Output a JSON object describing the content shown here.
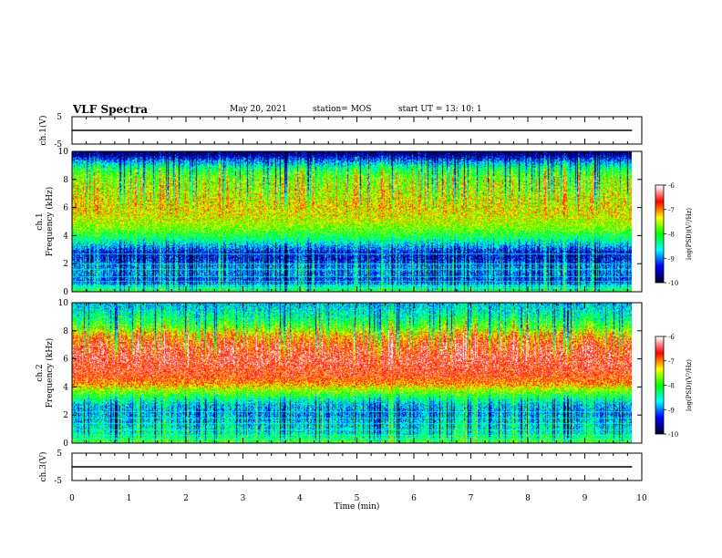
{
  "header": {
    "title": "VLF Spectra",
    "date": "May 20, 2021",
    "station": "station= MOS",
    "start": "start  UT  =    13: 10: 1"
  },
  "chart_data": [
    {
      "type": "line",
      "panel": "ch1-waveform",
      "ylabel": "ch.1(V)",
      "ylim": [
        -5,
        5
      ],
      "yticks": [
        "5",
        "-5"
      ],
      "series": [
        {
          "x": [
            0,
            9.83
          ],
          "y": [
            0,
            0
          ]
        }
      ]
    },
    {
      "type": "heatmap",
      "panel": "ch1-spectrogram",
      "ylabel": "ch.1\nFrequency (kHz)",
      "xlim": [
        0,
        10
      ],
      "ylim": [
        0,
        10
      ],
      "yticks": [
        "0",
        "2",
        "4",
        "6",
        "8",
        "10"
      ],
      "data_end_min": 9.83,
      "colorbar": {
        "label": "log(PSD)(V²/Hz)",
        "range": [
          -10,
          -6
        ],
        "ticks": [
          "-6",
          "-7",
          "-8",
          "-9",
          "-10"
        ]
      },
      "profile_khz": [
        0.25,
        0.75,
        1.25,
        1.75,
        2.25,
        2.75,
        3.25,
        3.75,
        4.25,
        4.75,
        5.25,
        5.75,
        6.25,
        6.75,
        7.25,
        7.75,
        8.25,
        8.75,
        9.25,
        9.75
      ],
      "profile_log_psd": [
        -8.2,
        -9.2,
        -9.0,
        -8.9,
        -9.3,
        -9.4,
        -8.8,
        -8.3,
        -7.9,
        -7.6,
        -7.4,
        -7.3,
        -7.3,
        -7.4,
        -7.5,
        -7.6,
        -7.8,
        -8.2,
        -8.9,
        -9.7
      ],
      "lines_khz": [
        0.3,
        0.45,
        0.75,
        1.1,
        1.6,
        2.0,
        2.7
      ]
    },
    {
      "type": "heatmap",
      "panel": "ch2-spectrogram",
      "ylabel": "ch.2\nFrequency (kHz)",
      "xlim": [
        0,
        10
      ],
      "ylim": [
        0,
        10
      ],
      "yticks": [
        "0",
        "2",
        "4",
        "6",
        "8",
        "10"
      ],
      "data_end_min": 9.83,
      "colorbar": {
        "label": "log(PSD)(V²/Hz)",
        "range": [
          -10,
          -6
        ],
        "ticks": [
          "-6",
          "-7",
          "-8",
          "-9",
          "-10"
        ]
      },
      "profile_khz": [
        0.25,
        0.75,
        1.25,
        1.75,
        2.25,
        2.75,
        3.25,
        3.75,
        4.25,
        4.75,
        5.25,
        5.75,
        6.25,
        6.75,
        7.25,
        7.75,
        8.25,
        8.75,
        9.25,
        9.75
      ],
      "profile_log_psd": [
        -8.0,
        -8.5,
        -8.6,
        -8.8,
        -8.9,
        -8.7,
        -8.2,
        -7.6,
        -7.0,
        -6.7,
        -6.6,
        -6.5,
        -6.5,
        -6.6,
        -6.8,
        -7.2,
        -7.8,
        -8.2,
        -8.5,
        -8.7
      ],
      "lines_khz": [
        0.3,
        0.6,
        1.0,
        1.4,
        1.8,
        2.3
      ]
    },
    {
      "type": "line",
      "panel": "ch3-waveform",
      "ylabel": "ch.3(V)",
      "xlabel": "Time (min)",
      "xlim": [
        0,
        10
      ],
      "xticks": [
        "0",
        "1",
        "2",
        "3",
        "4",
        "5",
        "6",
        "7",
        "8",
        "9",
        "10"
      ],
      "ylim": [
        -5,
        5
      ],
      "yticks": [
        "5",
        "-5"
      ],
      "series": [
        {
          "x": [
            0,
            9.83
          ],
          "y": [
            0,
            0
          ]
        }
      ]
    }
  ],
  "colormap": [
    "#000033",
    "#0000ff",
    "#00ffff",
    "#00ff00",
    "#ffff00",
    "#ff0000",
    "#ffffff"
  ]
}
